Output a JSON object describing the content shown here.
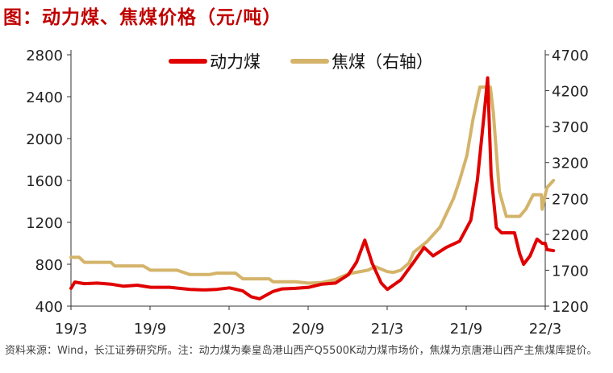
{
  "title": "图：动力煤、焦煤价格（元/吨）",
  "source": "资料来源：Wind，长江证券研究所。注：动力煤为秦皇岛港山西产Q5500K动力煤市场价，焦煤为京唐港山西产主焦煤库提价。",
  "chart_data": {
    "type": "line",
    "x_ticks": [
      "19/3",
      "19/9",
      "20/3",
      "20/9",
      "21/3",
      "21/9",
      "22/3"
    ],
    "x_range": [
      "2019-03",
      "2022-03"
    ],
    "y_left": {
      "ticks": [
        400,
        800,
        1200,
        1600,
        2000,
        2400,
        2800
      ],
      "ylim": [
        400,
        2800
      ]
    },
    "y_right": {
      "ticks": [
        1200,
        1700,
        2200,
        2700,
        3200,
        3700,
        4200,
        4700
      ],
      "ylim": [
        1200,
        4700
      ]
    },
    "legend_position": "top-center",
    "grid": false,
    "series": [
      {
        "name": "动力煤",
        "axis": "left",
        "color": "#e00000",
        "points": [
          [
            "2019-03-01",
            570
          ],
          [
            "2019-03-10",
            630
          ],
          [
            "2019-04-01",
            615
          ],
          [
            "2019-05-01",
            620
          ],
          [
            "2019-06-01",
            610
          ],
          [
            "2019-07-01",
            590
          ],
          [
            "2019-08-01",
            600
          ],
          [
            "2019-09-01",
            580
          ],
          [
            "2019-10-15",
            580
          ],
          [
            "2019-12-01",
            560
          ],
          [
            "2020-01-01",
            555
          ],
          [
            "2020-02-01",
            560
          ],
          [
            "2020-03-01",
            575
          ],
          [
            "2020-04-01",
            545
          ],
          [
            "2020-04-20",
            490
          ],
          [
            "2020-05-10",
            470
          ],
          [
            "2020-06-10",
            540
          ],
          [
            "2020-07-01",
            565
          ],
          [
            "2020-08-01",
            570
          ],
          [
            "2020-09-01",
            580
          ],
          [
            "2020-10-01",
            610
          ],
          [
            "2020-11-01",
            620
          ],
          [
            "2020-12-01",
            700
          ],
          [
            "2020-12-20",
            820
          ],
          [
            "2021-01-08",
            1030
          ],
          [
            "2021-01-25",
            810
          ],
          [
            "2021-02-15",
            620
          ],
          [
            "2021-03-01",
            560
          ],
          [
            "2021-04-01",
            650
          ],
          [
            "2021-05-01",
            820
          ],
          [
            "2021-05-25",
            960
          ],
          [
            "2021-06-15",
            880
          ],
          [
            "2021-07-15",
            960
          ],
          [
            "2021-08-15",
            1020
          ],
          [
            "2021-09-10",
            1220
          ],
          [
            "2021-09-25",
            1600
          ],
          [
            "2021-10-10",
            2200
          ],
          [
            "2021-10-19",
            2580
          ],
          [
            "2021-10-27",
            1650
          ],
          [
            "2021-11-08",
            1150
          ],
          [
            "2021-11-20",
            1100
          ],
          [
            "2021-12-20",
            1100
          ],
          [
            "2022-01-01",
            900
          ],
          [
            "2022-01-10",
            800
          ],
          [
            "2022-01-25",
            880
          ],
          [
            "2022-02-10",
            1040
          ],
          [
            "2022-02-22",
            1000
          ],
          [
            "2022-03-01",
            1000
          ],
          [
            "2022-03-05",
            940
          ],
          [
            "2022-03-20",
            930
          ]
        ]
      },
      {
        "name": "焦煤（右轴）",
        "axis": "right",
        "color": "#d4b46a",
        "points": [
          [
            "2019-03-01",
            1880
          ],
          [
            "2019-03-20",
            1880
          ],
          [
            "2019-04-01",
            1810
          ],
          [
            "2019-06-01",
            1810
          ],
          [
            "2019-06-10",
            1760
          ],
          [
            "2019-08-15",
            1760
          ],
          [
            "2019-09-01",
            1700
          ],
          [
            "2019-11-01",
            1700
          ],
          [
            "2019-12-01",
            1640
          ],
          [
            "2020-01-15",
            1640
          ],
          [
            "2020-02-01",
            1660
          ],
          [
            "2020-03-15",
            1660
          ],
          [
            "2020-04-01",
            1580
          ],
          [
            "2020-06-01",
            1580
          ],
          [
            "2020-06-10",
            1540
          ],
          [
            "2020-08-01",
            1540
          ],
          [
            "2020-09-01",
            1520
          ],
          [
            "2020-10-01",
            1530
          ],
          [
            "2020-11-01",
            1570
          ],
          [
            "2020-12-01",
            1650
          ],
          [
            "2021-01-15",
            1700
          ],
          [
            "2021-02-01",
            1750
          ],
          [
            "2021-03-01",
            1680
          ],
          [
            "2021-03-15",
            1670
          ],
          [
            "2021-04-01",
            1700
          ],
          [
            "2021-04-20",
            1800
          ],
          [
            "2021-05-01",
            1950
          ],
          [
            "2021-06-01",
            2100
          ],
          [
            "2021-07-01",
            2300
          ],
          [
            "2021-08-01",
            2700
          ],
          [
            "2021-08-15",
            2950
          ],
          [
            "2021-09-01",
            3300
          ],
          [
            "2021-09-15",
            3800
          ],
          [
            "2021-10-01",
            4250
          ],
          [
            "2021-10-25",
            4250
          ],
          [
            "2021-11-01",
            3900
          ],
          [
            "2021-11-15",
            2800
          ],
          [
            "2021-12-01",
            2450
          ],
          [
            "2022-01-01",
            2450
          ],
          [
            "2022-01-15",
            2550
          ],
          [
            "2022-02-01",
            2750
          ],
          [
            "2022-02-20",
            2750
          ],
          [
            "2022-02-22",
            2550
          ],
          [
            "2022-03-01",
            2750
          ],
          [
            "2022-03-05",
            2850
          ],
          [
            "2022-03-20",
            2950
          ]
        ]
      }
    ]
  }
}
